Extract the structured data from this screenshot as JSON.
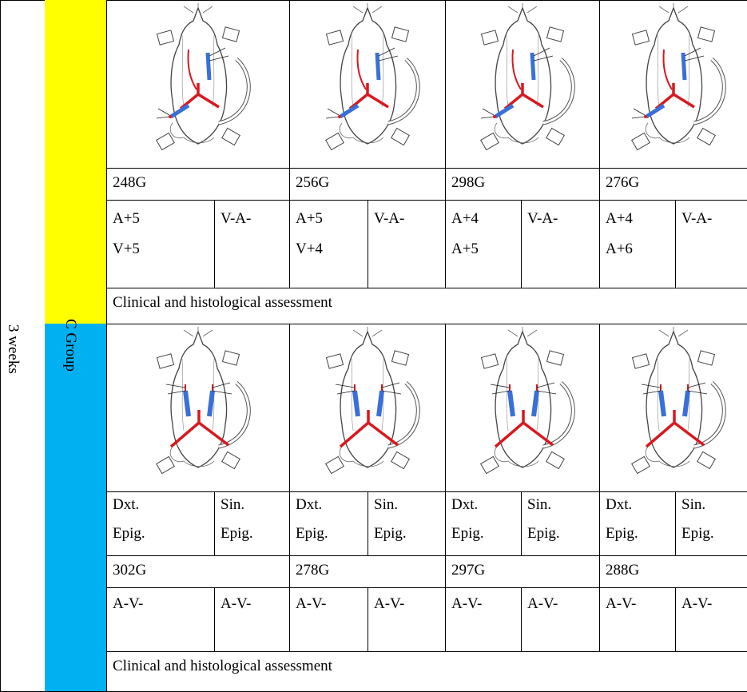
{
  "time_label": "3 weeks",
  "groups": [
    {
      "animals": [
        {
          "weight": "248G",
          "left": [
            "A+5",
            "V+5"
          ],
          "right": [
            "V-A-"
          ]
        },
        {
          "weight": "256G",
          "left": [
            "A+5",
            "V+4"
          ],
          "right": [
            "V-A-"
          ]
        },
        {
          "weight": "298G",
          "left": [
            "A+4",
            "A+5"
          ],
          "right": [
            "V-A-"
          ]
        },
        {
          "weight": "276G",
          "left": [
            "A+4",
            "A+6"
          ],
          "right": [
            "V-A-"
          ]
        }
      ],
      "assessment": "Clinical and histological assessment"
    },
    {
      "label": "C Group",
      "animals": [
        {
          "sides": [
            [
              "Dxt.",
              "Epig."
            ],
            [
              "Sin.",
              "Epig."
            ]
          ],
          "weight": "302G",
          "left": [
            "A-V-"
          ],
          "right": [
            "A-V-"
          ]
        },
        {
          "sides": [
            [
              "Dxt.",
              "Epig."
            ],
            [
              "Sin.",
              "Epig."
            ]
          ],
          "weight": "278G",
          "left": [
            "A-V-"
          ],
          "right": [
            "A-V-"
          ]
        },
        {
          "sides": [
            [
              "Dxt.",
              "Epig."
            ],
            [
              "Sin.",
              "Epig."
            ]
          ],
          "weight": "297G",
          "left": [
            "A-V-"
          ],
          "right": [
            "A-V-"
          ]
        },
        {
          "sides": [
            [
              "Dxt.",
              "Epig."
            ],
            [
              "Sin.",
              "Epig."
            ]
          ],
          "weight": "288G",
          "left": [
            "A-V-"
          ],
          "right": [
            "A-V-"
          ]
        }
      ],
      "assessment": "Clinical and histological assessment"
    }
  ]
}
